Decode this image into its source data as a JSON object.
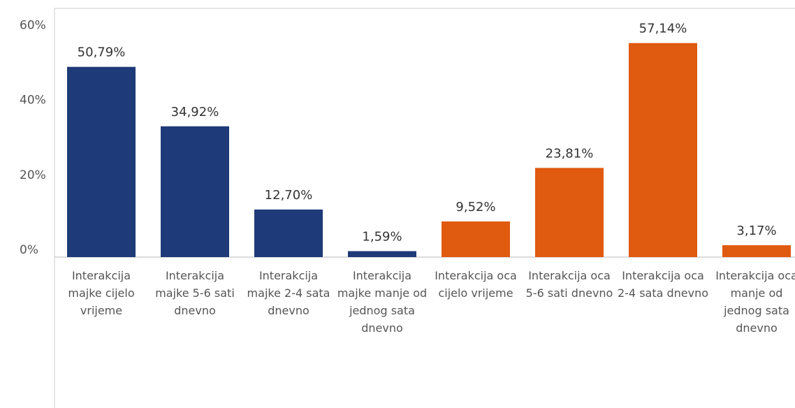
{
  "chart_data": {
    "type": "bar",
    "categories": [
      "Interakcija majke cijelo vrijeme",
      "Interakcija majke 5-6 sati dnevno",
      "Interakcija majke 2-4 sata dnevno",
      "Interakcija majke manje od jednog sata dnevno",
      "Interakcija oca cijelo vrijeme",
      "Interakcija oca 5-6 sati dnevno",
      "Interakcija oca 2-4 sata dnevno",
      "Interakcija oca manje od jednog sata dnevno"
    ],
    "values": [
      50.79,
      34.92,
      12.7,
      1.59,
      9.52,
      23.81,
      57.14,
      3.17
    ],
    "value_labels": [
      "50,79%",
      "34,92%",
      "12,70%",
      "1,59%",
      "9,52%",
      "23,81%",
      "57,14%",
      "3,17%"
    ],
    "colors": [
      "#1e3a78",
      "#1e3a78",
      "#1e3a78",
      "#1e3a78",
      "#e05a10",
      "#e05a10",
      "#e05a10",
      "#e05a10"
    ],
    "ylim": [
      0,
      66.4
    ],
    "yticks": [
      {
        "value": 0,
        "label": "0%"
      },
      {
        "value": 20,
        "label": "20%"
      },
      {
        "value": 40,
        "label": "40%"
      },
      {
        "value": 60,
        "label": "60%"
      }
    ]
  }
}
